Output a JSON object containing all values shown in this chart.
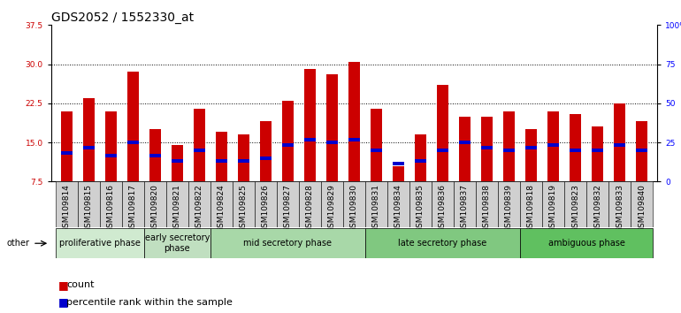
{
  "title": "GDS2052 / 1552330_at",
  "samples": [
    "GSM109814",
    "GSM109815",
    "GSM109816",
    "GSM109817",
    "GSM109820",
    "GSM109821",
    "GSM109822",
    "GSM109824",
    "GSM109825",
    "GSM109826",
    "GSM109827",
    "GSM109828",
    "GSM109829",
    "GSM109830",
    "GSM109831",
    "GSM109834",
    "GSM109835",
    "GSM109836",
    "GSM109837",
    "GSM109838",
    "GSM109839",
    "GSM109818",
    "GSM109819",
    "GSM109823",
    "GSM109832",
    "GSM109833",
    "GSM109840"
  ],
  "count_values": [
    21.0,
    23.5,
    21.0,
    28.5,
    17.5,
    14.5,
    21.5,
    17.0,
    16.5,
    19.0,
    23.0,
    29.0,
    28.0,
    30.5,
    21.5,
    10.5,
    16.5,
    26.0,
    20.0,
    20.0,
    21.0,
    17.5,
    21.0,
    20.5,
    18.0,
    22.5,
    19.0
  ],
  "percentile_pos": [
    13.0,
    14.0,
    12.5,
    15.0,
    12.5,
    11.5,
    13.5,
    11.5,
    11.5,
    12.0,
    14.5,
    15.5,
    15.0,
    15.5,
    13.5,
    11.0,
    11.5,
    13.5,
    15.0,
    14.0,
    13.5,
    14.0,
    14.5,
    13.5,
    13.5,
    14.5,
    13.5
  ],
  "phases": [
    {
      "label": "proliferative phase",
      "start": 0,
      "end": 4,
      "color": "#d0ead0"
    },
    {
      "label": "early secretory\nphase",
      "start": 4,
      "end": 7,
      "color": "#c0dfc0"
    },
    {
      "label": "mid secretory phase",
      "start": 7,
      "end": 14,
      "color": "#a8d8a8"
    },
    {
      "label": "late secretory phase",
      "start": 14,
      "end": 21,
      "color": "#80c880"
    },
    {
      "label": "ambiguous phase",
      "start": 21,
      "end": 27,
      "color": "#60c060"
    }
  ],
  "ymin": 7.5,
  "ymax": 37.5,
  "yticks_left": [
    7.5,
    15.0,
    22.5,
    30.0,
    37.5
  ],
  "yticks_right": [
    0,
    25,
    50,
    75,
    100
  ],
  "bar_color": "#cc0000",
  "percentile_color": "#0000cc",
  "bar_width": 0.5,
  "title_fontsize": 10,
  "tick_fontsize": 6.5,
  "phase_fontsize": 7,
  "legend_fontsize": 8,
  "xticklabel_bg": "#d0d0d0"
}
